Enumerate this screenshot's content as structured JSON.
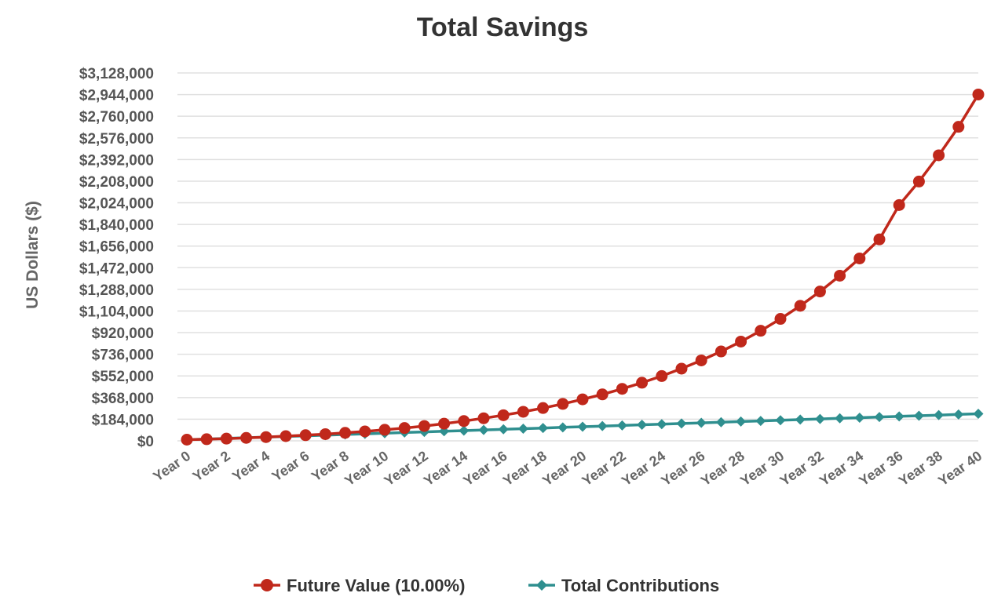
{
  "chart_data": {
    "type": "line",
    "title": "Total Savings",
    "xlabel": "",
    "ylabel": "US Dollars ($)",
    "ylim": [
      0,
      3128000
    ],
    "y_ticks": [
      "$0",
      "$184,000",
      "$368,000",
      "$552,000",
      "$736,000",
      "$920,000",
      "$1,104,000",
      "$1,288,000",
      "$1,472,000",
      "$1,656,000",
      "$1,840,000",
      "$2,024,000",
      "$2,208,000",
      "$2,392,000",
      "$2,576,000",
      "$2,760,000",
      "$2,944,000",
      "$3,128,000"
    ],
    "y_tick_values": [
      0,
      184000,
      368000,
      552000,
      736000,
      920000,
      1104000,
      1288000,
      1472000,
      1656000,
      1840000,
      2024000,
      2208000,
      2392000,
      2576000,
      2760000,
      2944000,
      3128000
    ],
    "x_tick_labels": [
      "Year 0",
      "Year 2",
      "Year 4",
      "Year 6",
      "Year 8",
      "Year 10",
      "Year 12",
      "Year 14",
      "Year 16",
      "Year 18",
      "Year 20",
      "Year 22",
      "Year 24",
      "Year 26",
      "Year 28",
      "Year 30",
      "Year 32",
      "Year 34",
      "Year 36",
      "Year 38",
      "Year 40"
    ],
    "categories": [
      "Year 0",
      "Year 1",
      "Year 2",
      "Year 3",
      "Year 4",
      "Year 5",
      "Year 6",
      "Year 7",
      "Year 8",
      "Year 9",
      "Year 10",
      "Year 11",
      "Year 12",
      "Year 13",
      "Year 14",
      "Year 15",
      "Year 16",
      "Year 17",
      "Year 18",
      "Year 19",
      "Year 20",
      "Year 21",
      "Year 22",
      "Year 23",
      "Year 24",
      "Year 25",
      "Year 26",
      "Year 27",
      "Year 28",
      "Year 29",
      "Year 30",
      "Year 31",
      "Year 32",
      "Year 33",
      "Year 34",
      "Year 35",
      "Year 36",
      "Year 37",
      "Year 38",
      "Year 39",
      "Year 40"
    ],
    "grid": true,
    "legend": "bottom-center",
    "series": [
      {
        "name": "Future Value (10.00%)",
        "color": "#c0281b",
        "marker": "circle",
        "values": [
          10000,
          14000,
          19000,
          25000,
          32000,
          40000,
          48000,
          57000,
          68000,
          80000,
          94000,
          109000,
          126000,
          146000,
          168000,
          192000,
          218000,
          247000,
          279000,
          314000,
          353000,
          395000,
          442000,
          494000,
          551000,
          614000,
          684000,
          760000,
          844000,
          936000,
          1037000,
          1148000,
          1270000,
          1404000,
          1551000,
          1713000,
          2005000,
          2205000,
          2428000,
          2670000,
          2945000
        ]
      },
      {
        "name": "Total Contributions",
        "color": "#2f8f8f",
        "marker": "diamond",
        "values": [
          10000,
          15500,
          21000,
          26500,
          32000,
          37500,
          43000,
          48500,
          54000,
          59500,
          65000,
          70500,
          76000,
          81500,
          87000,
          92500,
          98000,
          103500,
          109000,
          114500,
          120000,
          125500,
          131000,
          136500,
          142000,
          147500,
          153000,
          158500,
          164000,
          169500,
          175000,
          180500,
          186000,
          191500,
          197000,
          202500,
          208000,
          213500,
          219000,
          224500,
          230000
        ]
      }
    ]
  }
}
